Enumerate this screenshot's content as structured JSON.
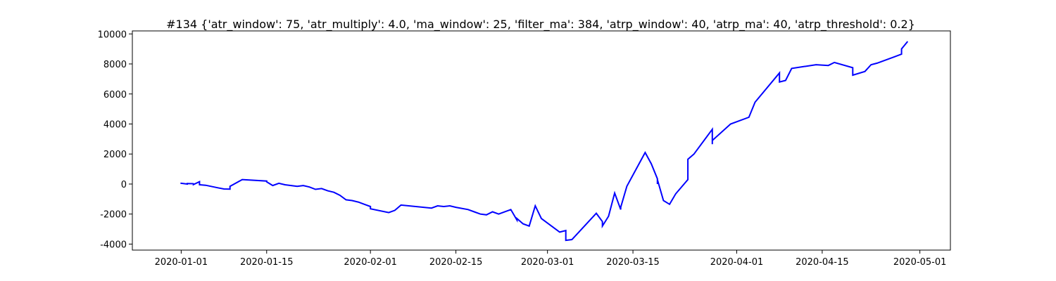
{
  "chart_data": {
    "type": "line",
    "title": "#134 {'atr_window': 75, 'atr_multiply': 4.0, 'ma_window': 25, 'filter_ma': 384, 'atrp_window': 40, 'atrp_ma': 40, 'atrp_threshold': 0.2}",
    "xlabel": "",
    "ylabel": "",
    "grid": false,
    "legend": "none",
    "x_ticks": [
      "2020-01-01",
      "2020-01-15",
      "2020-02-01",
      "2020-02-15",
      "2020-03-01",
      "2020-03-15",
      "2020-04-01",
      "2020-04-15",
      "2020-05-01"
    ],
    "y_ticks": [
      -4000,
      -2000,
      0,
      2000,
      4000,
      6000,
      8000,
      10000
    ],
    "xlim": [
      "2019-12-24",
      "2020-05-06"
    ],
    "ylim": [
      -4400,
      10200
    ],
    "colors": {
      "line": "#0000ff",
      "axes": "#000000"
    },
    "series": [
      {
        "x": [
          "2020-01-01",
          "2020-01-01",
          "2020-01-02",
          "2020-01-02",
          "2020-01-03",
          "2020-01-03",
          "2020-01-03",
          "2020-01-04",
          "2020-01-04",
          "2020-01-04",
          "2020-01-05",
          "2020-01-07",
          "2020-01-08",
          "2020-01-09",
          "2020-01-09",
          "2020-01-11",
          "2020-01-15",
          "2020-01-15",
          "2020-01-16",
          "2020-01-17",
          "2020-01-18",
          "2020-01-20",
          "2020-01-21",
          "2020-01-22",
          "2020-01-23",
          "2020-01-24",
          "2020-01-25",
          "2020-01-26",
          "2020-01-27",
          "2020-01-28",
          "2020-01-29",
          "2020-01-30",
          "2020-01-31",
          "2020-02-01",
          "2020-02-01",
          "2020-02-04",
          "2020-02-05",
          "2020-02-06",
          "2020-02-11",
          "2020-02-12",
          "2020-02-13",
          "2020-02-14",
          "2020-02-15",
          "2020-02-17",
          "2020-02-18",
          "2020-02-19",
          "2020-02-20",
          "2020-02-21",
          "2020-02-22",
          "2020-02-24",
          "2020-02-25",
          "2020-02-25",
          "2020-02-26",
          "2020-02-27",
          "2020-02-28",
          "2020-02-29",
          "2020-03-03",
          "2020-03-04",
          "2020-03-04",
          "2020-03-05",
          "2020-03-09",
          "2020-03-10",
          "2020-03-10",
          "2020-03-11",
          "2020-03-12",
          "2020-03-13",
          "2020-03-13",
          "2020-03-14",
          "2020-03-17",
          "2020-03-18",
          "2020-03-19",
          "2020-03-19",
          "2020-03-19",
          "2020-03-20",
          "2020-03-21",
          "2020-03-22",
          "2020-03-24",
          "2020-03-24",
          "2020-03-25",
          "2020-03-28",
          "2020-03-28",
          "2020-03-28",
          "2020-03-31",
          "2020-04-03",
          "2020-04-04",
          "2020-04-08",
          "2020-04-08",
          "2020-04-09",
          "2020-04-10",
          "2020-04-14",
          "2020-04-16",
          "2020-04-17",
          "2020-04-20",
          "2020-04-20",
          "2020-04-22",
          "2020-04-23",
          "2020-04-24",
          "2020-04-28",
          "2020-04-28",
          "2020-04-29"
        ],
        "values": [
          0,
          50,
          0,
          30,
          20,
          60,
          -40,
          160,
          150,
          -50,
          -80,
          -250,
          -330,
          -340,
          -150,
          300,
          200,
          150,
          -100,
          50,
          -50,
          -150,
          -100,
          -200,
          -350,
          -300,
          -450,
          -550,
          -750,
          -1050,
          -1100,
          -1200,
          -1350,
          -1500,
          -1650,
          -1900,
          -1750,
          -1400,
          -1600,
          -1450,
          -1500,
          -1450,
          -1550,
          -1700,
          -1850,
          -2000,
          -2050,
          -1850,
          -2000,
          -1700,
          -2400,
          -2300,
          -2650,
          -2800,
          -1450,
          -2300,
          -3200,
          -3100,
          -3750,
          -3700,
          -1950,
          -2500,
          -2800,
          -2150,
          -600,
          -1700,
          -1550,
          -150,
          2100,
          1350,
          350,
          0,
          300,
          -1100,
          -1350,
          -650,
          300,
          1650,
          2000,
          3650,
          2650,
          2900,
          4000,
          4450,
          5450,
          7400,
          6800,
          6900,
          7700,
          7950,
          7900,
          8100,
          7750,
          7250,
          7500,
          7950,
          8050,
          8650,
          9000,
          9500
        ]
      }
    ]
  }
}
